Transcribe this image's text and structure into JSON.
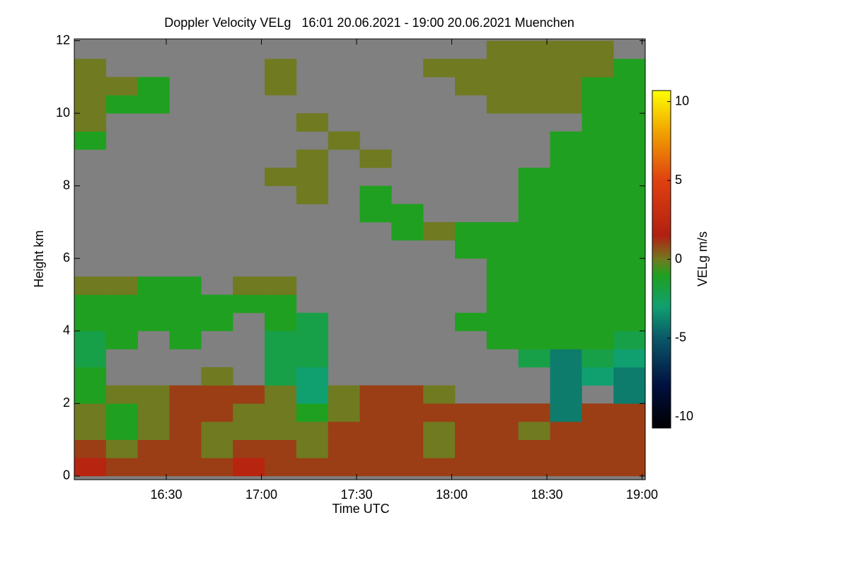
{
  "chart_data": {
    "type": "heatmap",
    "title": "Doppler Velocity VELg   16:01 20.06.2021 - 19:00 20.06.2021 Muenchen",
    "x_label": "Time UTC",
    "y_label": "Height km",
    "colorbar_label": "VELg m/s",
    "xlim": [
      961,
      1141
    ],
    "xticks": [
      {
        "value": 990,
        "label": "16:30"
      },
      {
        "value": 1020,
        "label": "17:00"
      },
      {
        "value": 1050,
        "label": "17:30"
      },
      {
        "value": 1080,
        "label": "18:00"
      },
      {
        "value": 1110,
        "label": "18:30"
      },
      {
        "value": 1140,
        "label": "19:00"
      }
    ],
    "ylim": [
      -0.1,
      12.05
    ],
    "yticks": [
      0,
      2,
      4,
      6,
      8,
      10,
      12
    ],
    "clim": [
      -10.7,
      10.7
    ],
    "cticks": [
      -10,
      -5,
      0,
      5,
      10
    ],
    "missing_color": "#808080",
    "colormap": [
      {
        "value": -10.7,
        "color": "#000000"
      },
      {
        "value": -8,
        "color": "#001040"
      },
      {
        "value": -5,
        "color": "#0a5868"
      },
      {
        "value": -3,
        "color": "#10a070"
      },
      {
        "value": -1,
        "color": "#20a020"
      },
      {
        "value": 0,
        "color": "#707a20"
      },
      {
        "value": 1.5,
        "color": "#b02010"
      },
      {
        "value": 5,
        "color": "#e04010"
      },
      {
        "value": 8,
        "color": "#f0a000"
      },
      {
        "value": 10.7,
        "color": "#ffff00"
      }
    ],
    "xbins": [
      961,
      971,
      981,
      991,
      1001,
      1011,
      1021,
      1031,
      1041,
      1051,
      1061,
      1071,
      1081,
      1091,
      1101,
      1111,
      1121,
      1131,
      1141
    ],
    "ybins": [
      0,
      0.5,
      1,
      1.5,
      2,
      2.5,
      3,
      3.5,
      4,
      4.5,
      5,
      5.5,
      6,
      6.5,
      7,
      7.5,
      8,
      8.5,
      9,
      9.5,
      10,
      10.5,
      11,
      11.5,
      12
    ],
    "z": [
      [
        2,
        1,
        1,
        1,
        1,
        2,
        1,
        1,
        1,
        1,
        1,
        1,
        1,
        1,
        1,
        1,
        1,
        1
      ],
      [
        1,
        0,
        1,
        1,
        0,
        1,
        1,
        0,
        1,
        1,
        1,
        0,
        1,
        1,
        1,
        1,
        1,
        1
      ],
      [
        0,
        -1,
        0,
        1,
        0,
        0,
        0,
        0,
        1,
        1,
        1,
        0,
        1,
        1,
        0,
        1,
        1,
        1
      ],
      [
        0,
        -1,
        0,
        1,
        1,
        0,
        0,
        -1,
        0,
        1,
        1,
        1,
        1,
        1,
        1,
        -4,
        1,
        1
      ],
      [
        -1,
        0,
        0,
        1,
        1,
        1,
        0,
        -3,
        0,
        1,
        1,
        0,
        null,
        null,
        null,
        -4,
        null,
        -4
      ],
      [
        -1,
        null,
        null,
        null,
        0,
        null,
        -2,
        -3,
        null,
        null,
        null,
        null,
        null,
        null,
        null,
        -4,
        -3,
        -4
      ],
      [
        -2,
        null,
        null,
        null,
        null,
        null,
        -2,
        -2,
        null,
        null,
        null,
        null,
        null,
        null,
        -2,
        -4,
        -2,
        -3
      ],
      [
        -2,
        -1,
        null,
        -1,
        null,
        null,
        -2,
        -2,
        null,
        null,
        null,
        null,
        null,
        -1,
        -1,
        -1,
        -1,
        -2
      ],
      [
        -1,
        -1,
        -1,
        -1,
        -1,
        null,
        -1,
        -2,
        null,
        null,
        null,
        null,
        -1,
        -1,
        -1,
        -1,
        -1,
        -1
      ],
      [
        -1,
        -1,
        -1,
        -1,
        -1,
        -1,
        -1,
        null,
        null,
        null,
        null,
        null,
        null,
        -1,
        -1,
        -1,
        -1,
        -1
      ],
      [
        0,
        0,
        -1,
        -1,
        null,
        0,
        0,
        null,
        null,
        null,
        null,
        null,
        null,
        -1,
        -1,
        -1,
        -1,
        -1
      ],
      [
        null,
        null,
        null,
        null,
        null,
        null,
        null,
        null,
        null,
        null,
        null,
        null,
        null,
        -1,
        -1,
        -1,
        -1,
        -1
      ],
      [
        null,
        null,
        null,
        null,
        null,
        null,
        null,
        null,
        null,
        null,
        null,
        null,
        -1,
        -1,
        -1,
        -1,
        -1,
        -1
      ],
      [
        null,
        null,
        null,
        null,
        null,
        null,
        null,
        null,
        null,
        null,
        -1,
        0,
        -1,
        -1,
        -1,
        -1,
        -1,
        -1
      ],
      [
        null,
        null,
        null,
        null,
        null,
        null,
        null,
        null,
        null,
        -1,
        -1,
        null,
        null,
        null,
        -1,
        -1,
        -1,
        -1
      ],
      [
        null,
        null,
        null,
        null,
        null,
        null,
        null,
        0,
        null,
        -1,
        null,
        null,
        null,
        null,
        -1,
        -1,
        -1,
        -1
      ],
      [
        null,
        null,
        null,
        null,
        null,
        null,
        0,
        0,
        null,
        null,
        null,
        null,
        null,
        null,
        -1,
        -1,
        -1,
        -1
      ],
      [
        null,
        null,
        null,
        null,
        null,
        null,
        null,
        0,
        null,
        0,
        null,
        null,
        null,
        null,
        null,
        -1,
        -1,
        -1
      ],
      [
        -1,
        null,
        null,
        null,
        null,
        null,
        null,
        null,
        0,
        null,
        null,
        null,
        null,
        null,
        null,
        -1,
        -1,
        -1
      ],
      [
        0,
        null,
        null,
        null,
        null,
        null,
        null,
        0,
        null,
        null,
        null,
        null,
        null,
        null,
        null,
        null,
        -1,
        -1
      ],
      [
        0,
        -1,
        -1,
        null,
        null,
        null,
        null,
        null,
        null,
        null,
        null,
        null,
        null,
        0,
        0,
        0,
        -1,
        -1
      ],
      [
        0,
        0,
        -1,
        null,
        null,
        null,
        0,
        null,
        null,
        null,
        null,
        null,
        0,
        0,
        0,
        0,
        -1,
        -1
      ],
      [
        0,
        null,
        null,
        null,
        null,
        null,
        0,
        null,
        null,
        null,
        null,
        0,
        0,
        0,
        0,
        0,
        0,
        -1
      ],
      [
        null,
        null,
        null,
        null,
        null,
        null,
        null,
        null,
        null,
        null,
        null,
        null,
        null,
        0,
        0,
        0,
        0,
        null
      ]
    ]
  }
}
